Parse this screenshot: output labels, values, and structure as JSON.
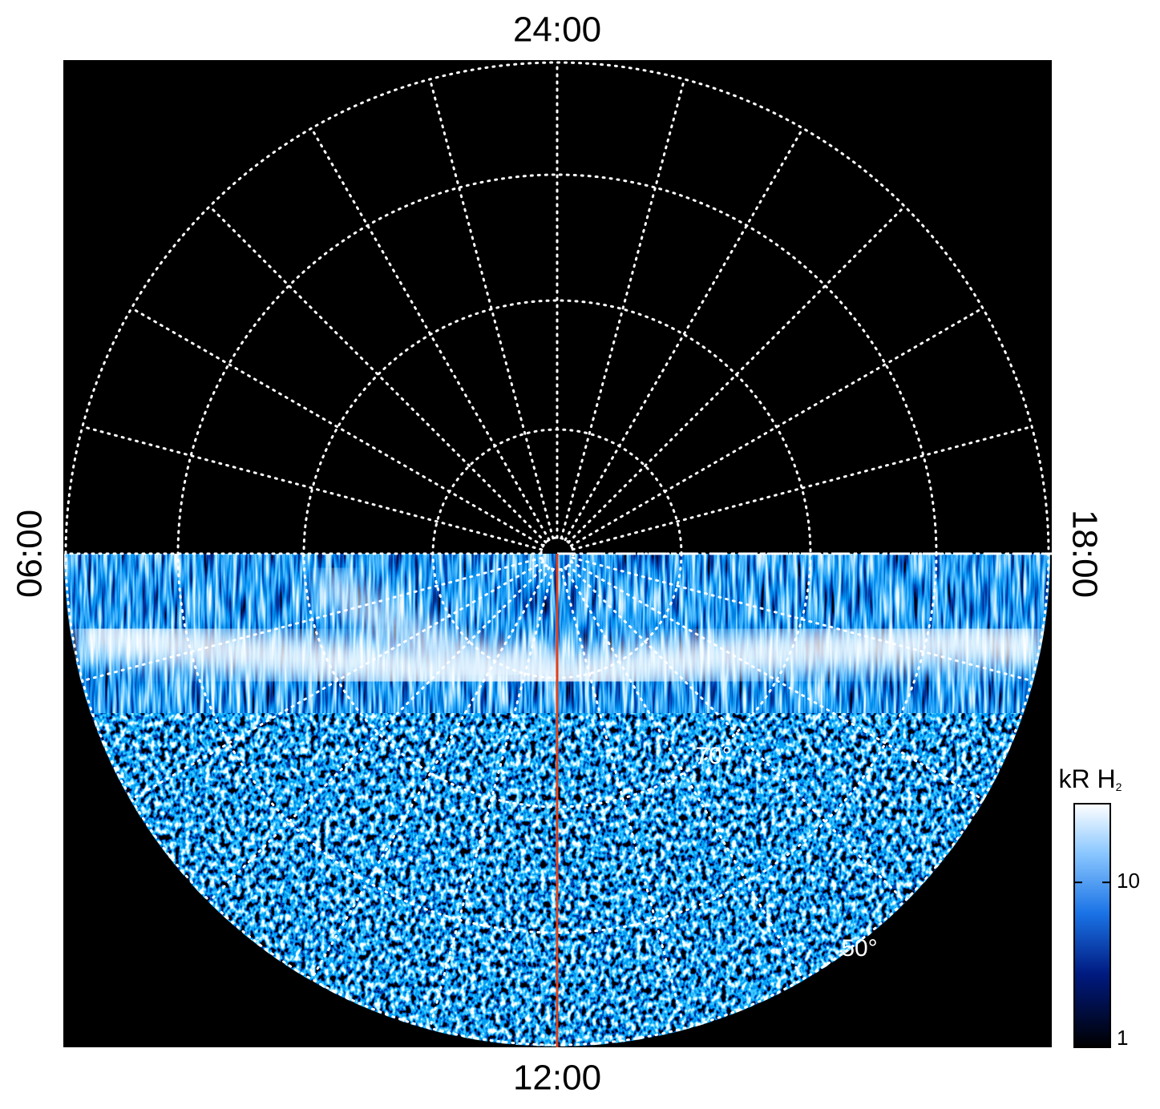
{
  "hour_labels": {
    "top": "24:00",
    "bottom": "12:00",
    "left": "06:00",
    "right": "18:00"
  },
  "latitude_labels": [
    "70°",
    "50°"
  ],
  "colorbar": {
    "title": "kR H",
    "title_subscript": "2",
    "scale": "log",
    "range": [
      1,
      30
    ],
    "ticks": [
      1,
      10
    ]
  }
}
